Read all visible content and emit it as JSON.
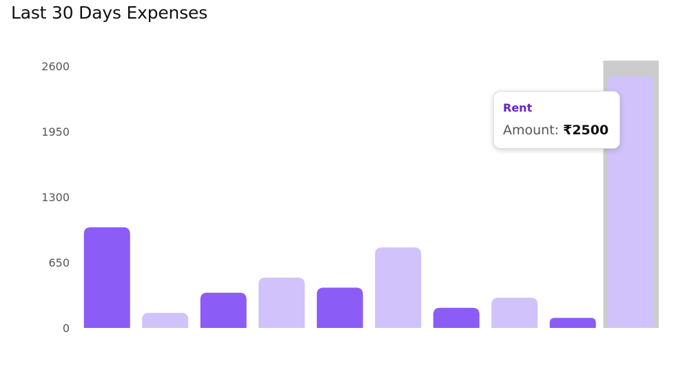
{
  "chart_data": {
    "type": "bar",
    "title": "Last 30 Days Expenses",
    "xlabel": "",
    "ylabel": "",
    "ylim": [
      0,
      2600
    ],
    "yticks": [
      "0",
      "650",
      "1300",
      "1950",
      "2600"
    ],
    "categories": [
      "",
      "",
      "",
      "",
      "",
      "",
      "",
      "",
      "",
      "Rent"
    ],
    "values": [
      1000,
      150,
      350,
      500,
      400,
      800,
      200,
      300,
      100,
      2500
    ],
    "colors": [
      "#8b5cf6",
      "#d1c2fc"
    ],
    "highlight_color": "#cccccc",
    "grid": false,
    "tooltip": {
      "title": "Rent",
      "label": "Amount: ",
      "value": "₹2500",
      "title_color": "#6b21c8"
    }
  }
}
